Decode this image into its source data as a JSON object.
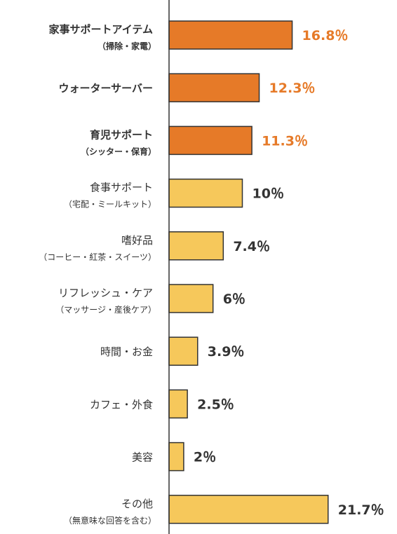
{
  "chart_data": {
    "type": "bar",
    "orientation": "horizontal",
    "grid": false,
    "xlim": [
      0,
      24.5
    ],
    "categories": [
      {
        "label": "家事サポートアイテム",
        "sublabel": "（掃除・家電）",
        "value": 16.8,
        "value_label": "16.8％",
        "highlight": true
      },
      {
        "label": "ウォーターサーバー",
        "sublabel": "",
        "value": 12.3,
        "value_label": "12.3％",
        "highlight": true
      },
      {
        "label": "育児サポート",
        "sublabel": "（シッター・保育）",
        "value": 11.3,
        "value_label": "11.3％",
        "highlight": true
      },
      {
        "label": "食事サポート",
        "sublabel": "（宅配・ミールキット）",
        "value": 10,
        "value_label": "10％",
        "highlight": false
      },
      {
        "label": "嗜好品",
        "sublabel": "（コーヒー・紅茶・スイーツ）",
        "value": 7.4,
        "value_label": "7.4％",
        "highlight": false
      },
      {
        "label": "リフレッシュ・ケア",
        "sublabel": "（マッサージ・産後ケア）",
        "value": 6,
        "value_label": "6％",
        "highlight": false
      },
      {
        "label": "時間・お金",
        "sublabel": "",
        "value": 3.9,
        "value_label": "3.9％",
        "highlight": false
      },
      {
        "label": "カフェ・外食",
        "sublabel": "",
        "value": 2.5,
        "value_label": "2.5％",
        "highlight": false
      },
      {
        "label": "美容",
        "sublabel": "",
        "value": 2,
        "value_label": "2％",
        "highlight": false
      },
      {
        "label": "その他",
        "sublabel": "（無意味な回答を含む）",
        "value": 21.7,
        "value_label": "21.7％",
        "highlight": false
      }
    ],
    "colors": {
      "highlight_fill": "#E67A28",
      "normal_fill": "#F6C85B",
      "bar_stroke": "#333333",
      "axis": "#333333",
      "highlight_value_text": "#E67A28",
      "normal_value_text": "#333333",
      "label_text": "#333333"
    }
  }
}
